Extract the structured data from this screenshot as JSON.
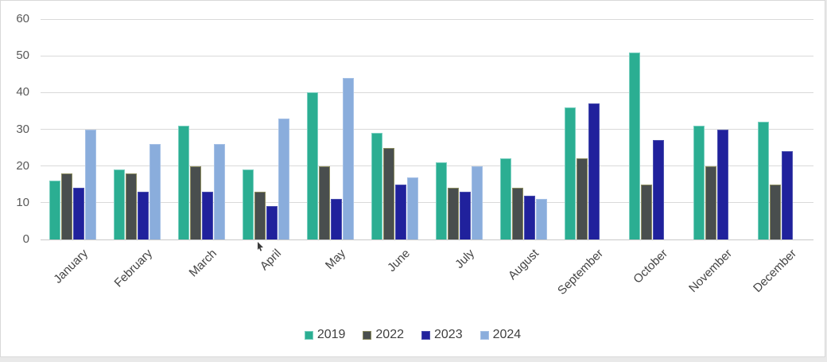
{
  "chart_data": {
    "type": "bar",
    "title": "",
    "categories": [
      "January",
      "February",
      "March",
      "April",
      "May",
      "June",
      "July",
      "August",
      "September",
      "October",
      "November",
      "December"
    ],
    "series": [
      {
        "name": "2019",
        "color": "#2BAE92",
        "border_color": "#7ACFC0",
        "values": [
          16,
          19,
          31,
          19,
          40,
          29,
          21,
          22,
          36,
          51,
          31,
          32
        ]
      },
      {
        "name": "2022",
        "color": "#494E4E",
        "border_color": "#8A8B5F",
        "values": [
          18,
          18,
          20,
          13,
          20,
          25,
          14,
          14,
          22,
          15,
          20,
          15
        ]
      },
      {
        "name": "2023",
        "color": "#20219C",
        "border_color": "#4A50AE",
        "values": [
          14,
          13,
          13,
          9,
          11,
          15,
          13,
          12,
          37,
          27,
          30,
          24
        ]
      },
      {
        "name": "2024",
        "color": "#8AADDC",
        "border_color": "#A6C1E6",
        "values": [
          30,
          26,
          26,
          33,
          44,
          17,
          20,
          11,
          null,
          null,
          null,
          null
        ]
      }
    ],
    "y_ticks": [
      0,
      10,
      20,
      30,
      40,
      50,
      60
    ],
    "ylim": [
      0,
      60
    ],
    "xlabel": "",
    "ylabel": "",
    "grid": true,
    "legend_position": "bottom",
    "category_label_rotation_deg": -45,
    "colors": {
      "gridline": "#D9D9D9",
      "axis_line": "#C9C9C9",
      "tick_label": "#595959",
      "category_label": "#444444",
      "legend_label": "#404040",
      "frame_border": "#D9D9D9",
      "background": "#FFFFFF"
    }
  }
}
